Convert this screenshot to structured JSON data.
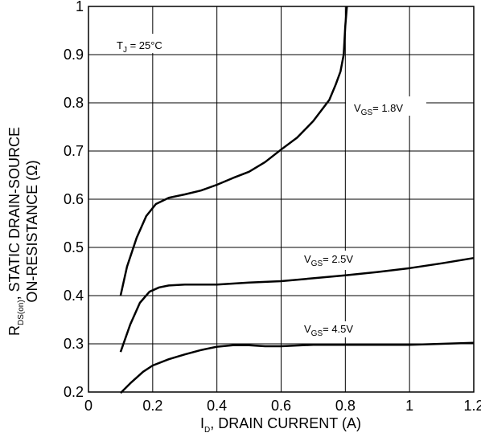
{
  "chart_data": {
    "type": "line",
    "xlabel": {
      "main": "I",
      "sub": "D",
      "rest": ", DRAIN CURRENT (A)"
    },
    "ylabel": {
      "line1_main": "R",
      "line1_sub": "DS(on)",
      "line1_rest": ", STATIC DRAIN-SOURCE",
      "line2": "ON-RESISTANCE (Ω)"
    },
    "xlim": [
      0,
      1.2
    ],
    "ylim": [
      0.2,
      1.0
    ],
    "x_ticks": [
      0,
      0.2,
      0.4,
      0.6,
      0.8,
      1,
      1.2
    ],
    "x_tick_labels": [
      "0",
      "0.2",
      "0.4",
      "0.6",
      "0.8",
      "1",
      "1.2"
    ],
    "y_ticks": [
      0.2,
      0.3,
      0.4,
      0.5,
      0.6,
      0.7,
      0.8,
      0.9,
      1.0
    ],
    "y_tick_labels": [
      "0.2",
      "0.3",
      "0.4",
      "0.5",
      "0.6",
      "0.7",
      "0.8",
      "0.9",
      "1"
    ],
    "grid": true,
    "annotation": {
      "main": "T",
      "sub": "J",
      "rest": " = 25°C"
    },
    "series": [
      {
        "name": "1.8V",
        "label": {
          "main": "V",
          "sub": "GS",
          "rest": "= 1.8V"
        },
        "x": [
          0.1,
          0.12,
          0.15,
          0.18,
          0.21,
          0.25,
          0.3,
          0.35,
          0.4,
          0.45,
          0.5,
          0.55,
          0.6,
          0.65,
          0.7,
          0.75,
          0.77,
          0.785,
          0.795,
          0.8,
          0.805
        ],
        "y": [
          0.4,
          0.46,
          0.52,
          0.565,
          0.59,
          0.603,
          0.61,
          0.618,
          0.63,
          0.644,
          0.657,
          0.677,
          0.703,
          0.728,
          0.762,
          0.806,
          0.838,
          0.865,
          0.9,
          0.96,
          1.0
        ]
      },
      {
        "name": "2.5V",
        "label": {
          "main": "V",
          "sub": "GS",
          "rest": "= 2.5V"
        },
        "x": [
          0.1,
          0.13,
          0.16,
          0.19,
          0.22,
          0.25,
          0.3,
          0.4,
          0.5,
          0.6,
          0.7,
          0.8,
          0.9,
          1.0,
          1.1,
          1.2
        ],
        "y": [
          0.283,
          0.34,
          0.385,
          0.408,
          0.417,
          0.421,
          0.423,
          0.423,
          0.427,
          0.43,
          0.436,
          0.442,
          0.449,
          0.457,
          0.467,
          0.478
        ]
      },
      {
        "name": "4.5V",
        "label": {
          "main": "V",
          "sub": "GS",
          "rest": "= 4.5V"
        },
        "x": [
          0.1,
          0.13,
          0.17,
          0.2,
          0.25,
          0.3,
          0.35,
          0.4,
          0.45,
          0.5,
          0.55,
          0.6,
          0.7,
          0.8,
          0.9,
          1.0,
          1.1,
          1.2
        ],
        "y": [
          0.198,
          0.218,
          0.242,
          0.255,
          0.268,
          0.278,
          0.287,
          0.294,
          0.297,
          0.297,
          0.295,
          0.295,
          0.298,
          0.298,
          0.298,
          0.298,
          0.3,
          0.302
        ]
      }
    ],
    "line_color": "#000000",
    "grid_color": "#000000"
  }
}
